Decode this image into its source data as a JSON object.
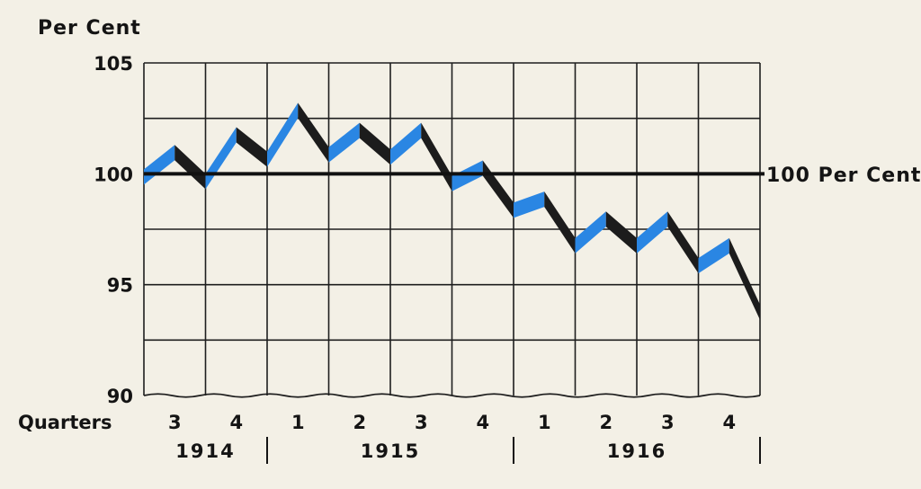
{
  "chart_data": {
    "type": "line",
    "ylabel": "Per Cent",
    "xlabel": "Quarters",
    "ylim": [
      90,
      105
    ],
    "yticks": [
      105,
      100,
      95,
      90
    ],
    "reference_line": {
      "value": 100,
      "label": "100 Per Cent"
    },
    "x": [
      {
        "q": "3",
        "year": "1914"
      },
      {
        "q": "4",
        "year": "1914"
      },
      {
        "q": "1",
        "year": "1915"
      },
      {
        "q": "2",
        "year": "1915"
      },
      {
        "q": "3",
        "year": "1915"
      },
      {
        "q": "4",
        "year": "1915"
      },
      {
        "q": "1",
        "year": "1916"
      },
      {
        "q": "2",
        "year": "1916"
      },
      {
        "q": "3",
        "year": "1916"
      },
      {
        "q": "4",
        "year": "1916"
      }
    ],
    "years": [
      "1914",
      "1915",
      "1916"
    ],
    "points": [
      {
        "quarter_index": 0.0,
        "value": 100.2
      },
      {
        "quarter_index": 0.5,
        "value": 101.3
      },
      {
        "quarter_index": 1.0,
        "value": 100.0
      },
      {
        "quarter_index": 1.5,
        "value": 102.1
      },
      {
        "quarter_index": 2.0,
        "value": 101.0
      },
      {
        "quarter_index": 2.5,
        "value": 103.2
      },
      {
        "quarter_index": 3.0,
        "value": 101.2
      },
      {
        "quarter_index": 3.5,
        "value": 102.3
      },
      {
        "quarter_index": 4.0,
        "value": 101.1
      },
      {
        "quarter_index": 4.5,
        "value": 102.3
      },
      {
        "quarter_index": 5.0,
        "value": 99.9
      },
      {
        "quarter_index": 5.5,
        "value": 100.6
      },
      {
        "quarter_index": 6.0,
        "value": 98.7
      },
      {
        "quarter_index": 6.5,
        "value": 99.2
      },
      {
        "quarter_index": 7.0,
        "value": 97.1
      },
      {
        "quarter_index": 7.5,
        "value": 98.3
      },
      {
        "quarter_index": 8.0,
        "value": 97.1
      },
      {
        "quarter_index": 8.5,
        "value": 98.3
      },
      {
        "quarter_index": 9.0,
        "value": 96.2
      },
      {
        "quarter_index": 9.5,
        "value": 97.1
      },
      {
        "quarter_index": 10.0,
        "value": 94.1
      }
    ],
    "colors": {
      "rising": "#2a86e3",
      "falling": "#1c1c1c",
      "grid": "#1e1e1e",
      "background": "#f3f0e6"
    },
    "grid": true,
    "legend": "none"
  }
}
